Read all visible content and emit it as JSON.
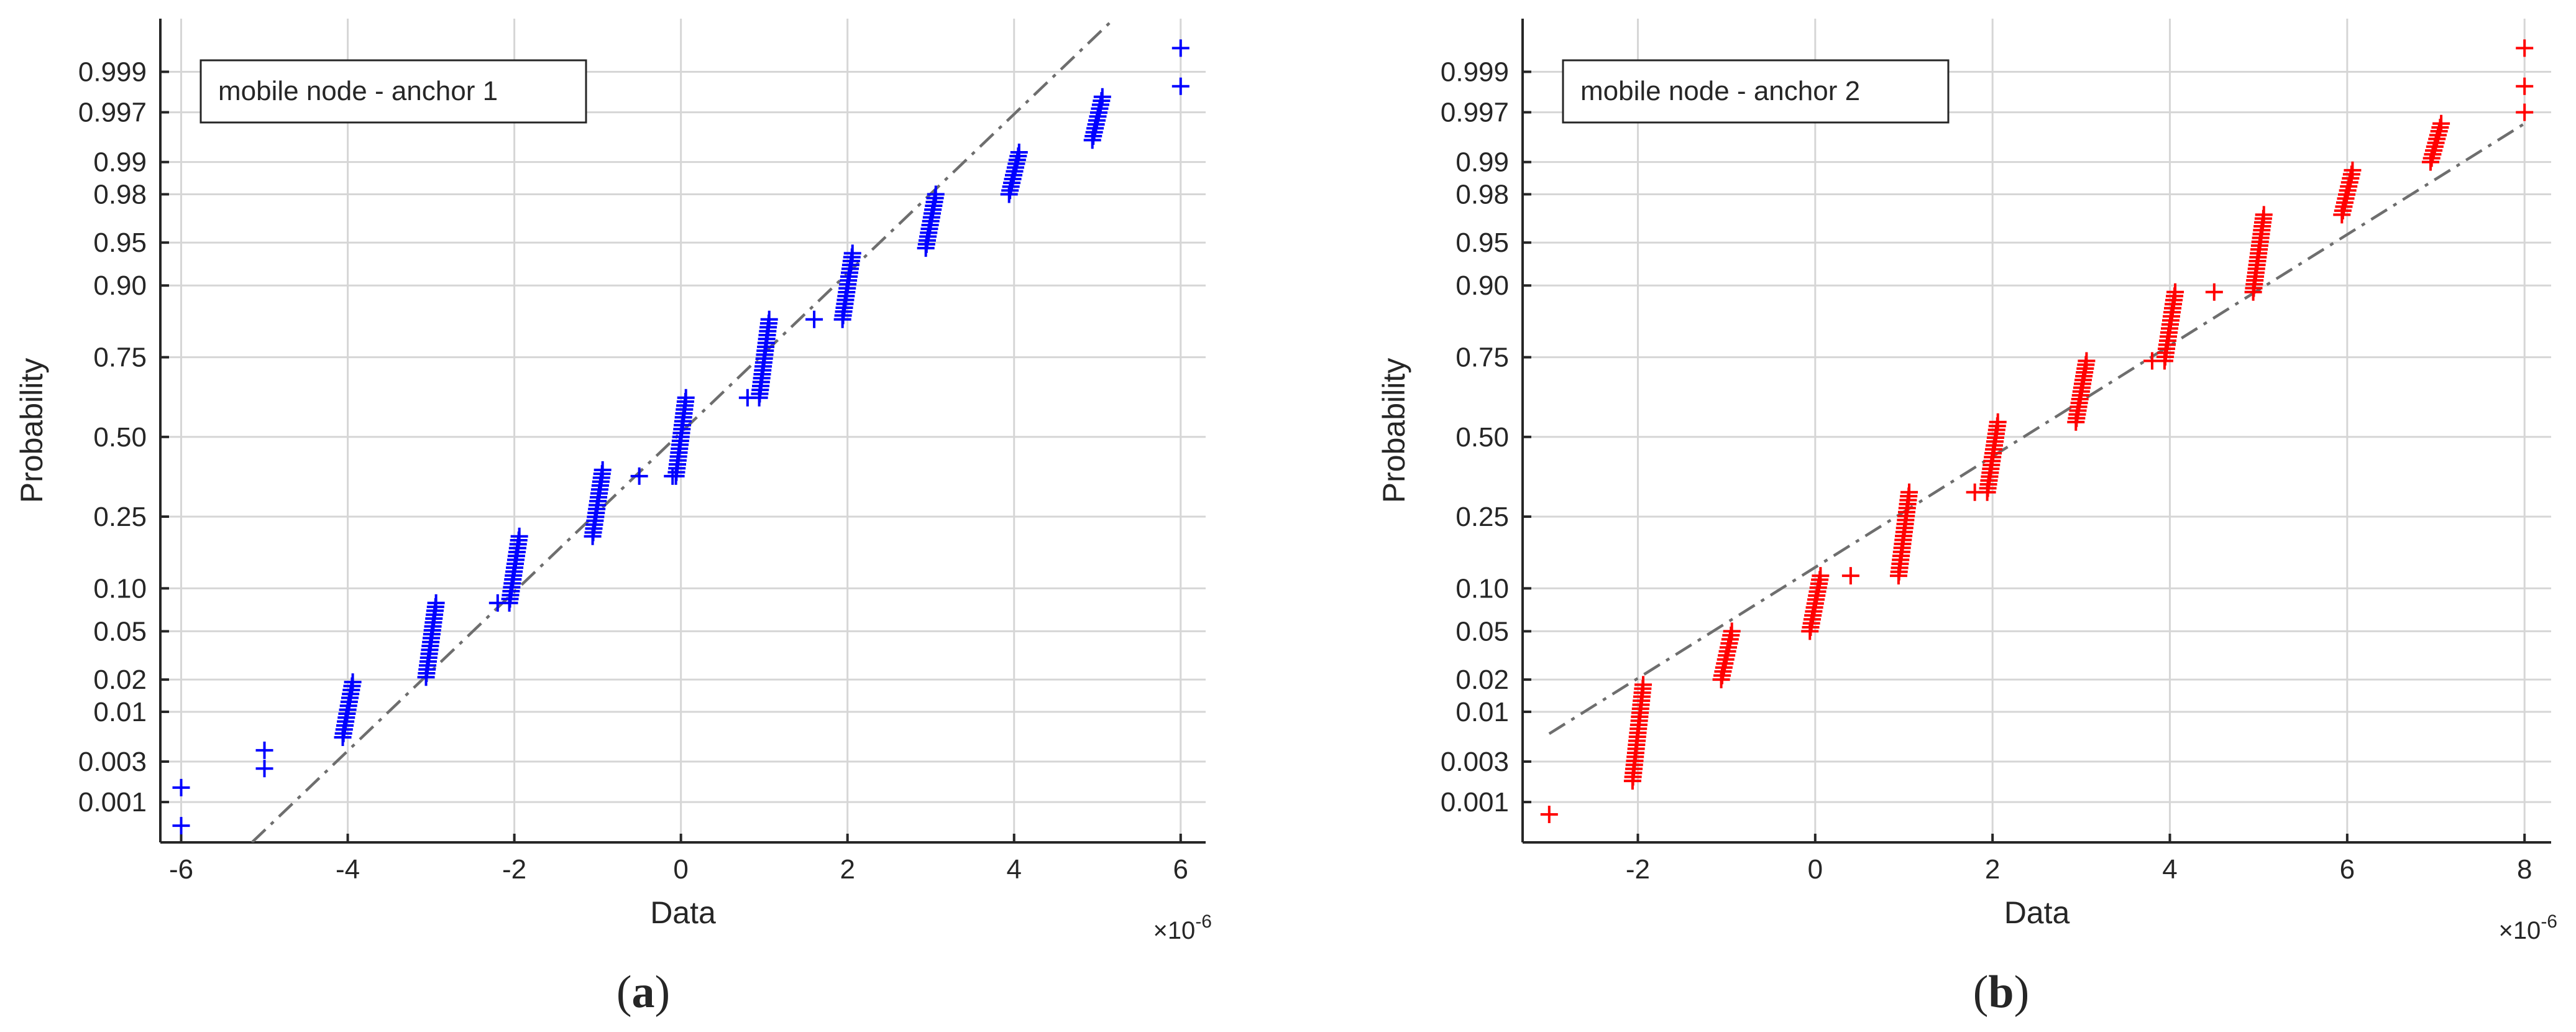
{
  "chart_data": [
    {
      "type": "scatter",
      "subtype": "normal-probability-plot",
      "legend_box": "mobile node - anchor 1",
      "legend_placement": "top-left",
      "xlabel": "Data",
      "ylabel": "Probability",
      "x_exponent_label": "×10",
      "x_exponent_power": "-6",
      "caption_letter": "a",
      "x_ticks": [
        -6,
        -4,
        -2,
        0,
        2,
        4,
        6
      ],
      "y_ticks": [
        0.001,
        0.003,
        0.01,
        0.02,
        0.05,
        0.1,
        0.25,
        0.5,
        0.75,
        0.9,
        0.95,
        0.98,
        0.99,
        0.997,
        0.999
      ],
      "y_tick_labels": [
        "0.001",
        "0.003",
        "0.01",
        "0.02",
        "0.05",
        "0.10",
        "0.25",
        "0.50",
        "0.75",
        "0.90",
        "0.95",
        "0.98",
        "0.99",
        "0.997",
        "0.999"
      ],
      "xlim": [
        -6.25,
        6.3
      ],
      "ylim": [
        0.0003,
        0.9998
      ],
      "grid": true,
      "marker": "+",
      "marker_color": "#0000ff",
      "reference_line": {
        "color": "#6e6e6e",
        "style": "dash-dot",
        "points": [
          [
            -5.15,
            0.0003
          ],
          [
            5.2,
            0.9998
          ]
        ]
      },
      "clusters": [
        {
          "x": -6.0,
          "p": [
            0.0005,
            0.0015
          ]
        },
        {
          "x": -5.0,
          "p": [
            0.0025,
            0.004
          ]
        },
        {
          "x": -4.0,
          "p_range": [
            0.0055,
            0.019
          ]
        },
        {
          "x": -3.0,
          "p_range": [
            0.021,
            0.08
          ]
        },
        {
          "x": -2.2,
          "p": [
            0.08
          ]
        },
        {
          "x": -2.0,
          "p_range": [
            0.08,
            0.2
          ]
        },
        {
          "x": -1.0,
          "p_range": [
            0.2,
            0.39
          ]
        },
        {
          "x": -0.5,
          "p": [
            0.37
          ]
        },
        {
          "x": -0.1,
          "p": [
            0.37
          ]
        },
        {
          "x": 0.0,
          "p_range": [
            0.37,
            0.63
          ]
        },
        {
          "x": 0.8,
          "p": [
            0.63
          ]
        },
        {
          "x": 1.0,
          "p_range": [
            0.63,
            0.84
          ]
        },
        {
          "x": 1.6,
          "p": [
            0.84
          ]
        },
        {
          "x": 2.0,
          "p_range": [
            0.84,
            0.94
          ]
        },
        {
          "x": 3.0,
          "p_range": [
            0.945,
            0.98
          ]
        },
        {
          "x": 4.0,
          "p_range": [
            0.98,
            0.992
          ]
        },
        {
          "x": 5.0,
          "p_range": [
            0.994,
            0.998
          ]
        },
        {
          "x": 6.0,
          "p": [
            0.9985,
            0.9995
          ]
        }
      ]
    },
    {
      "type": "scatter",
      "subtype": "normal-probability-plot",
      "legend_box": "mobile node - anchor 2",
      "legend_placement": "top-left",
      "xlabel": "Data",
      "ylabel": "Probability",
      "x_exponent_label": "×10",
      "x_exponent_power": "-6",
      "caption_letter": "b",
      "x_ticks": [
        -2,
        0,
        2,
        4,
        6,
        8
      ],
      "y_ticks": [
        0.001,
        0.003,
        0.01,
        0.02,
        0.05,
        0.1,
        0.25,
        0.5,
        0.75,
        0.9,
        0.95,
        0.98,
        0.99,
        0.997,
        0.999
      ],
      "y_tick_labels": [
        "0.001",
        "0.003",
        "0.01",
        "0.02",
        "0.05",
        "0.10",
        "0.25",
        "0.50",
        "0.75",
        "0.90",
        "0.95",
        "0.98",
        "0.99",
        "0.997",
        "0.999"
      ],
      "xlim": [
        -3.3,
        8.3
      ],
      "ylim": [
        0.0003,
        0.9998
      ],
      "grid": true,
      "marker": "+",
      "marker_color": "#ff0000",
      "reference_line": {
        "color": "#6e6e6e",
        "style": "dash-dot",
        "points": [
          [
            -3.0,
            0.006
          ],
          [
            8.0,
            0.996
          ]
        ]
      },
      "clusters": [
        {
          "x": -3.0,
          "p": [
            0.0007
          ]
        },
        {
          "x": -2.0,
          "p_range": [
            0.0018,
            0.018
          ]
        },
        {
          "x": -1.0,
          "p_range": [
            0.02,
            0.05
          ]
        },
        {
          "x": 0.0,
          "p_range": [
            0.05,
            0.12
          ]
        },
        {
          "x": 0.4,
          "p": [
            0.12
          ]
        },
        {
          "x": 1.0,
          "p_range": [
            0.12,
            0.32
          ]
        },
        {
          "x": 1.8,
          "p": [
            0.32
          ]
        },
        {
          "x": 2.0,
          "p_range": [
            0.32,
            0.55
          ]
        },
        {
          "x": 3.0,
          "p_range": [
            0.55,
            0.74
          ]
        },
        {
          "x": 3.8,
          "p": [
            0.74
          ]
        },
        {
          "x": 4.0,
          "p_range": [
            0.74,
            0.89
          ]
        },
        {
          "x": 4.5,
          "p": [
            0.89
          ]
        },
        {
          "x": 5.0,
          "p_range": [
            0.89,
            0.97
          ]
        },
        {
          "x": 6.0,
          "p_range": [
            0.97,
            0.988
          ]
        },
        {
          "x": 7.0,
          "p_range": [
            0.99,
            0.996
          ]
        },
        {
          "x": 8.0,
          "p": [
            0.997,
            0.9985,
            0.9995
          ]
        }
      ]
    }
  ]
}
